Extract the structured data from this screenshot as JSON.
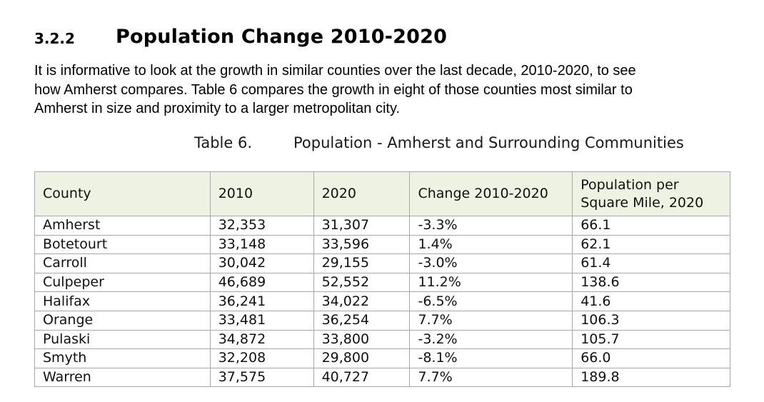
{
  "section": {
    "number": "3.2.2",
    "title": "Population Change 2010-2020"
  },
  "intro": {
    "line1": "It is informative to look at the growth in similar counties over the last decade, 2010-2020, to see",
    "line2": "how Amherst compares. Table 6 compares the growth in eight of those counties most similar to",
    "line3": "Amherst in size and proximity to a larger metropolitan city."
  },
  "table": {
    "caption_label": "Table 6.",
    "caption_text": "Population - Amherst and Surrounding Communities",
    "header_fill": "#eef2e2",
    "headers": {
      "county": "County",
      "y2010": "2010",
      "y2020": "2020",
      "change": "Change 2010-2020",
      "density_line1": "Population per",
      "density_line2": "Square Mile, 2020"
    },
    "rows": [
      {
        "county": "Amherst",
        "y2010": "32,353",
        "y2020": "31,307",
        "change": "-3.3%",
        "density": "66.1"
      },
      {
        "county": "Botetourt",
        "y2010": "33,148",
        "y2020": "33,596",
        "change": "1.4%",
        "density": "62.1"
      },
      {
        "county": "Carroll",
        "y2010": "30,042",
        "y2020": "29,155",
        "change": "-3.0%",
        "density": "61.4"
      },
      {
        "county": "Culpeper",
        "y2010": "46,689",
        "y2020": "52,552",
        "change": "11.2%",
        "density": "138.6"
      },
      {
        "county": "Halifax",
        "y2010": "36,241",
        "y2020": "34,022",
        "change": "-6.5%",
        "density": "41.6"
      },
      {
        "county": "Orange",
        "y2010": "33,481",
        "y2020": "36,254",
        "change": "7.7%",
        "density": "106.3"
      },
      {
        "county": "Pulaski",
        "y2010": "34,872",
        "y2020": "33,800",
        "change": "-3.2%",
        "density": "105.7"
      },
      {
        "county": "Smyth",
        "y2010": "32,208",
        "y2020": "29,800",
        "change": "-8.1%",
        "density": "66.0"
      },
      {
        "county": "Warren",
        "y2010": "37,575",
        "y2020": "40,727",
        "change": "7.7%",
        "density": "189.8"
      }
    ]
  }
}
